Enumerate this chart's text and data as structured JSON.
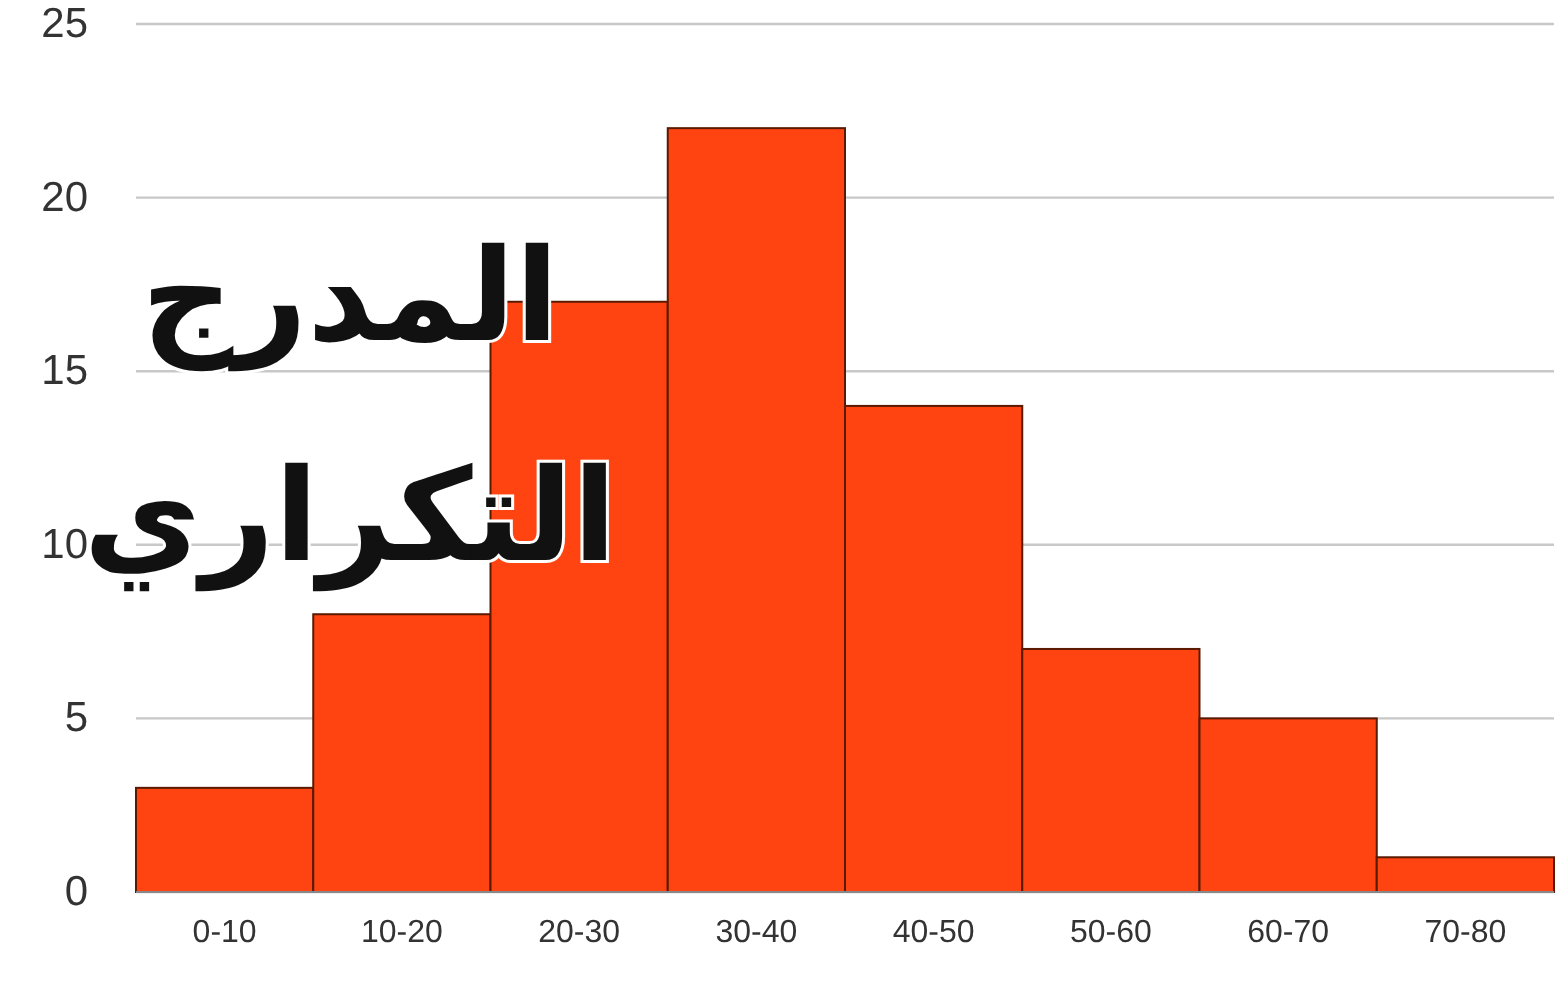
{
  "chart_data": {
    "type": "bar",
    "title": "المدرج التكراري",
    "categories": [
      "0-10",
      "10-20",
      "20-30",
      "30-40",
      "40-50",
      "50-60",
      "60-70",
      "70-80"
    ],
    "values": [
      3,
      8,
      17,
      22,
      14,
      7,
      5,
      1
    ],
    "color": "#ff4412",
    "ylim": [
      0,
      25
    ],
    "yticks": [
      0,
      5,
      10,
      15,
      20,
      25
    ],
    "grid": "y"
  }
}
